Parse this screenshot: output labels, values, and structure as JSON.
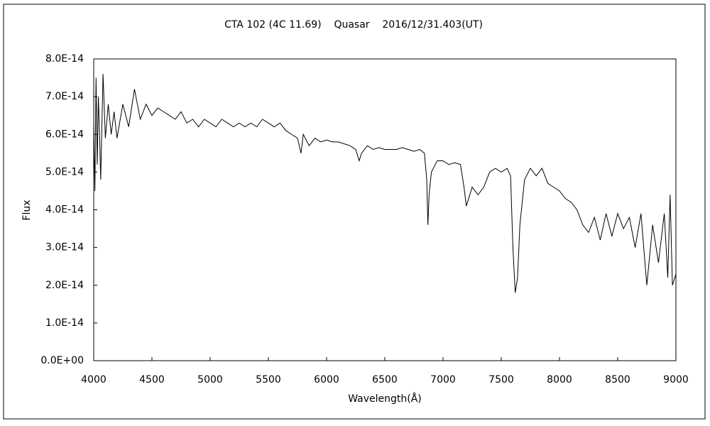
{
  "chart_data": {
    "type": "line",
    "title": "CTA 102 (4C 11.69)    Quasar    2016/12/31.403(UT)",
    "x_label": "Wavelength(Å)",
    "y_label": "Flux",
    "color": "#000000",
    "grid": false,
    "xlim": [
      4000,
      9000
    ],
    "xticks": [
      4000,
      4500,
      5000,
      5500,
      6000,
      6500,
      7000,
      7500,
      8000,
      8500,
      9000
    ],
    "ylim": [
      0,
      8e-14
    ],
    "yticks": [
      {
        "value": 0,
        "label": "0.0E+00"
      },
      {
        "value": 1e-14,
        "label": "1.0E-14"
      },
      {
        "value": 2e-14,
        "label": "2.0E-14"
      },
      {
        "value": 3e-14,
        "label": "3.0E-14"
      },
      {
        "value": 4e-14,
        "label": "4.0E-14"
      },
      {
        "value": 5e-14,
        "label": "5.0E-14"
      },
      {
        "value": 6e-14,
        "label": "6.0E-14"
      },
      {
        "value": 7e-14,
        "label": "7.0E-14"
      },
      {
        "value": 8e-14,
        "label": "8.0E-14"
      }
    ],
    "x": [
      4000,
      4010,
      4020,
      4030,
      4040,
      4050,
      4060,
      4080,
      4100,
      4125,
      4150,
      4175,
      4200,
      4250,
      4300,
      4350,
      4400,
      4450,
      4500,
      4550,
      4600,
      4650,
      4700,
      4750,
      4800,
      4850,
      4900,
      4950,
      5000,
      5050,
      5100,
      5150,
      5200,
      5250,
      5300,
      5350,
      5400,
      5450,
      5500,
      5550,
      5600,
      5650,
      5700,
      5750,
      5780,
      5800,
      5850,
      5900,
      5950,
      6000,
      6050,
      6100,
      6150,
      6200,
      6250,
      6280,
      6300,
      6350,
      6400,
      6450,
      6500,
      6550,
      6600,
      6650,
      6700,
      6750,
      6800,
      6840,
      6860,
      6870,
      6880,
      6900,
      6950,
      7000,
      7050,
      7100,
      7150,
      7180,
      7200,
      7220,
      7250,
      7300,
      7350,
      7400,
      7450,
      7500,
      7550,
      7580,
      7600,
      7620,
      7640,
      7660,
      7700,
      7750,
      7800,
      7850,
      7900,
      7950,
      8000,
      8050,
      8100,
      8150,
      8200,
      8250,
      8300,
      8350,
      8400,
      8450,
      8500,
      8550,
      8600,
      8650,
      8700,
      8750,
      8800,
      8850,
      8900,
      8930,
      8950,
      8970,
      9000
    ],
    "values": [
      6.3e-14,
      4.5e-14,
      7.5e-14,
      5.2e-14,
      7e-14,
      6e-14,
      4.8e-14,
      7.6e-14,
      5.9e-14,
      6.8e-14,
      6e-14,
      6.6e-14,
      5.9e-14,
      6.8e-14,
      6.2e-14,
      7.2e-14,
      6.4e-14,
      6.8e-14,
      6.5e-14,
      6.7e-14,
      6.6e-14,
      6.5e-14,
      6.4e-14,
      6.6e-14,
      6.3e-14,
      6.4e-14,
      6.2e-14,
      6.4e-14,
      6.3e-14,
      6.2e-14,
      6.4e-14,
      6.3e-14,
      6.2e-14,
      6.3e-14,
      6.2e-14,
      6.3e-14,
      6.2e-14,
      6.4e-14,
      6.3e-14,
      6.2e-14,
      6.3e-14,
      6.1e-14,
      6e-14,
      5.9e-14,
      5.5e-14,
      6e-14,
      5.7e-14,
      5.9e-14,
      5.8e-14,
      5.85e-14,
      5.8e-14,
      5.8e-14,
      5.75e-14,
      5.7e-14,
      5.6e-14,
      5.3e-14,
      5.5e-14,
      5.7e-14,
      5.6e-14,
      5.65e-14,
      5.6e-14,
      5.6e-14,
      5.6e-14,
      5.65e-14,
      5.6e-14,
      5.55e-14,
      5.6e-14,
      5.5e-14,
      4.8e-14,
      3.6e-14,
      4.4e-14,
      5e-14,
      5.3e-14,
      5.3e-14,
      5.2e-14,
      5.25e-14,
      5.2e-14,
      4.6e-14,
      4.1e-14,
      4.3e-14,
      4.6e-14,
      4.4e-14,
      4.6e-14,
      5e-14,
      5.1e-14,
      5e-14,
      5.1e-14,
      4.9e-14,
      3e-14,
      1.8e-14,
      2.2e-14,
      3.6e-14,
      4.8e-14,
      5.1e-14,
      4.9e-14,
      5.1e-14,
      4.7e-14,
      4.6e-14,
      4.5e-14,
      4.3e-14,
      4.2e-14,
      4e-14,
      3.6e-14,
      3.4e-14,
      3.8e-14,
      3.2e-14,
      3.9e-14,
      3.3e-14,
      3.9e-14,
      3.5e-14,
      3.8e-14,
      3e-14,
      3.9e-14,
      2e-14,
      3.6e-14,
      2.6e-14,
      3.9e-14,
      2.2e-14,
      4.4e-14,
      2e-14,
      2.3e-14
    ]
  }
}
